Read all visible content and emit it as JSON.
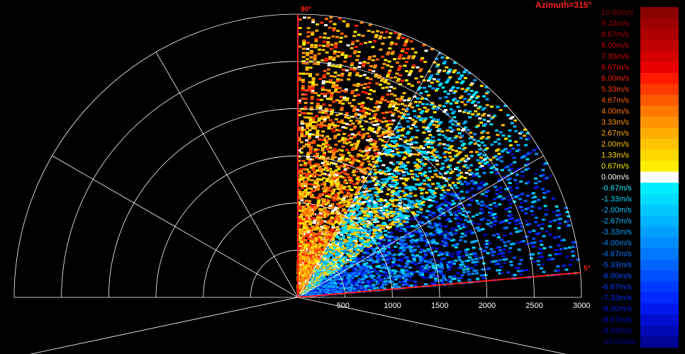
{
  "chart_data": {
    "type": "heatmap",
    "subtype": "radar-sector (RHI / elevation scan)",
    "title": "Azimuth=315°",
    "elevation_labels": {
      "start": "5°",
      "end": "90°"
    },
    "elevation_range_deg": [
      5,
      90
    ],
    "range_ticks": [
      "500",
      "1000",
      "1500",
      "2000",
      "2500",
      "3000"
    ],
    "range_max": 3000,
    "range_ring_step": 500,
    "spoke_angles_deg": [
      0,
      30,
      60,
      90,
      120,
      150,
      180
    ],
    "grid": true,
    "colorbar": {
      "placement": "right",
      "min": -10,
      "max": 10,
      "labels": [
        "10.00m/s",
        "9.33m/s",
        "8.67m/s",
        "8.00m/s",
        "7.33m/s",
        "6.67m/s",
        "6.00m/s",
        "5.33m/s",
        "4.67m/s",
        "4.00m/s",
        "3.33m/s",
        "2.67m/s",
        "2.00m/s",
        "1.33m/s",
        "0.67m/s",
        "0.00m/s",
        "-0.67m/s",
        "-1.33m/s",
        "-2.00m/s",
        "-2.67m/s",
        "-3.33m/s",
        "-4.00m/s",
        "-4.67m/s",
        "-5.33m/s",
        "-6.00m/s",
        "-6.67m/s",
        "-7.33m/s",
        "-8.00m/s",
        "-8.67m/s",
        "-9.33m/s",
        "-10.00m/s"
      ],
      "colors": [
        "#8b0000",
        "#9c0000",
        "#ad0000",
        "#bf0000",
        "#d40000",
        "#e80000",
        "#ff1a00",
        "#ff3b00",
        "#ff5a00",
        "#ff7800",
        "#ff9400",
        "#ffad00",
        "#ffc400",
        "#ffd800",
        "#ffee00",
        "#ffffff",
        "#00eeff",
        "#00dcff",
        "#00c8ff",
        "#00b4ff",
        "#00a0ff",
        "#008cff",
        "#0078ff",
        "#0064ff",
        "#0050ff",
        "#003cff",
        "#0028ff",
        "#0018ee",
        "#000fd2",
        "#0009b4",
        "#000596"
      ]
    },
    "series": [
      {
        "value_range": [
          0.0,
          6.0
        ],
        "elevation_range_deg": [
          60,
          90
        ]
      },
      {
        "value_range": [
          -4.0,
          3.0
        ],
        "elevation_range_deg": [
          35,
          60
        ]
      },
      {
        "value_range": [
          -10.0,
          -1.0
        ],
        "elevation_range_deg": [
          5,
          35
        ]
      }
    ]
  }
}
